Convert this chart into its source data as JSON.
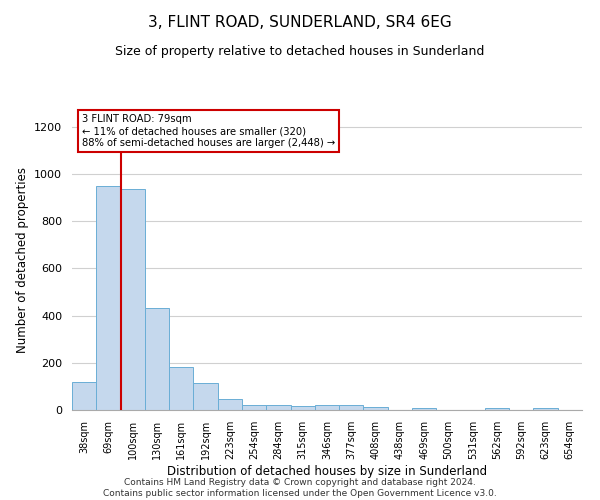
{
  "title": "3, FLINT ROAD, SUNDERLAND, SR4 6EG",
  "subtitle": "Size of property relative to detached houses in Sunderland",
  "xlabel": "Distribution of detached houses by size in Sunderland",
  "ylabel": "Number of detached properties",
  "categories": [
    "38sqm",
    "69sqm",
    "100sqm",
    "130sqm",
    "161sqm",
    "192sqm",
    "223sqm",
    "254sqm",
    "284sqm",
    "315sqm",
    "346sqm",
    "377sqm",
    "408sqm",
    "438sqm",
    "469sqm",
    "500sqm",
    "531sqm",
    "562sqm",
    "592sqm",
    "623sqm",
    "654sqm"
  ],
  "values": [
    120,
    950,
    935,
    430,
    183,
    115,
    45,
    20,
    20,
    15,
    20,
    20,
    12,
    0,
    10,
    0,
    0,
    10,
    0,
    10,
    0
  ],
  "bar_color": "#c5d8ed",
  "bar_edge_color": "#6aaed6",
  "annotation_text_line1": "3 FLINT ROAD: 79sqm",
  "annotation_text_line2": "← 11% of detached houses are smaller (320)",
  "annotation_text_line3": "88% of semi-detached houses are larger (2,448) →",
  "annotation_box_facecolor": "#ffffff",
  "annotation_box_edgecolor": "#cc0000",
  "vline_color": "#cc0000",
  "vline_x": 1.5,
  "ylim": [
    0,
    1270
  ],
  "yticks": [
    0,
    200,
    400,
    600,
    800,
    1000,
    1200
  ],
  "footer_line1": "Contains HM Land Registry data © Crown copyright and database right 2024.",
  "footer_line2": "Contains public sector information licensed under the Open Government Licence v3.0.",
  "background_color": "#ffffff",
  "grid_color": "#d0d0d0"
}
